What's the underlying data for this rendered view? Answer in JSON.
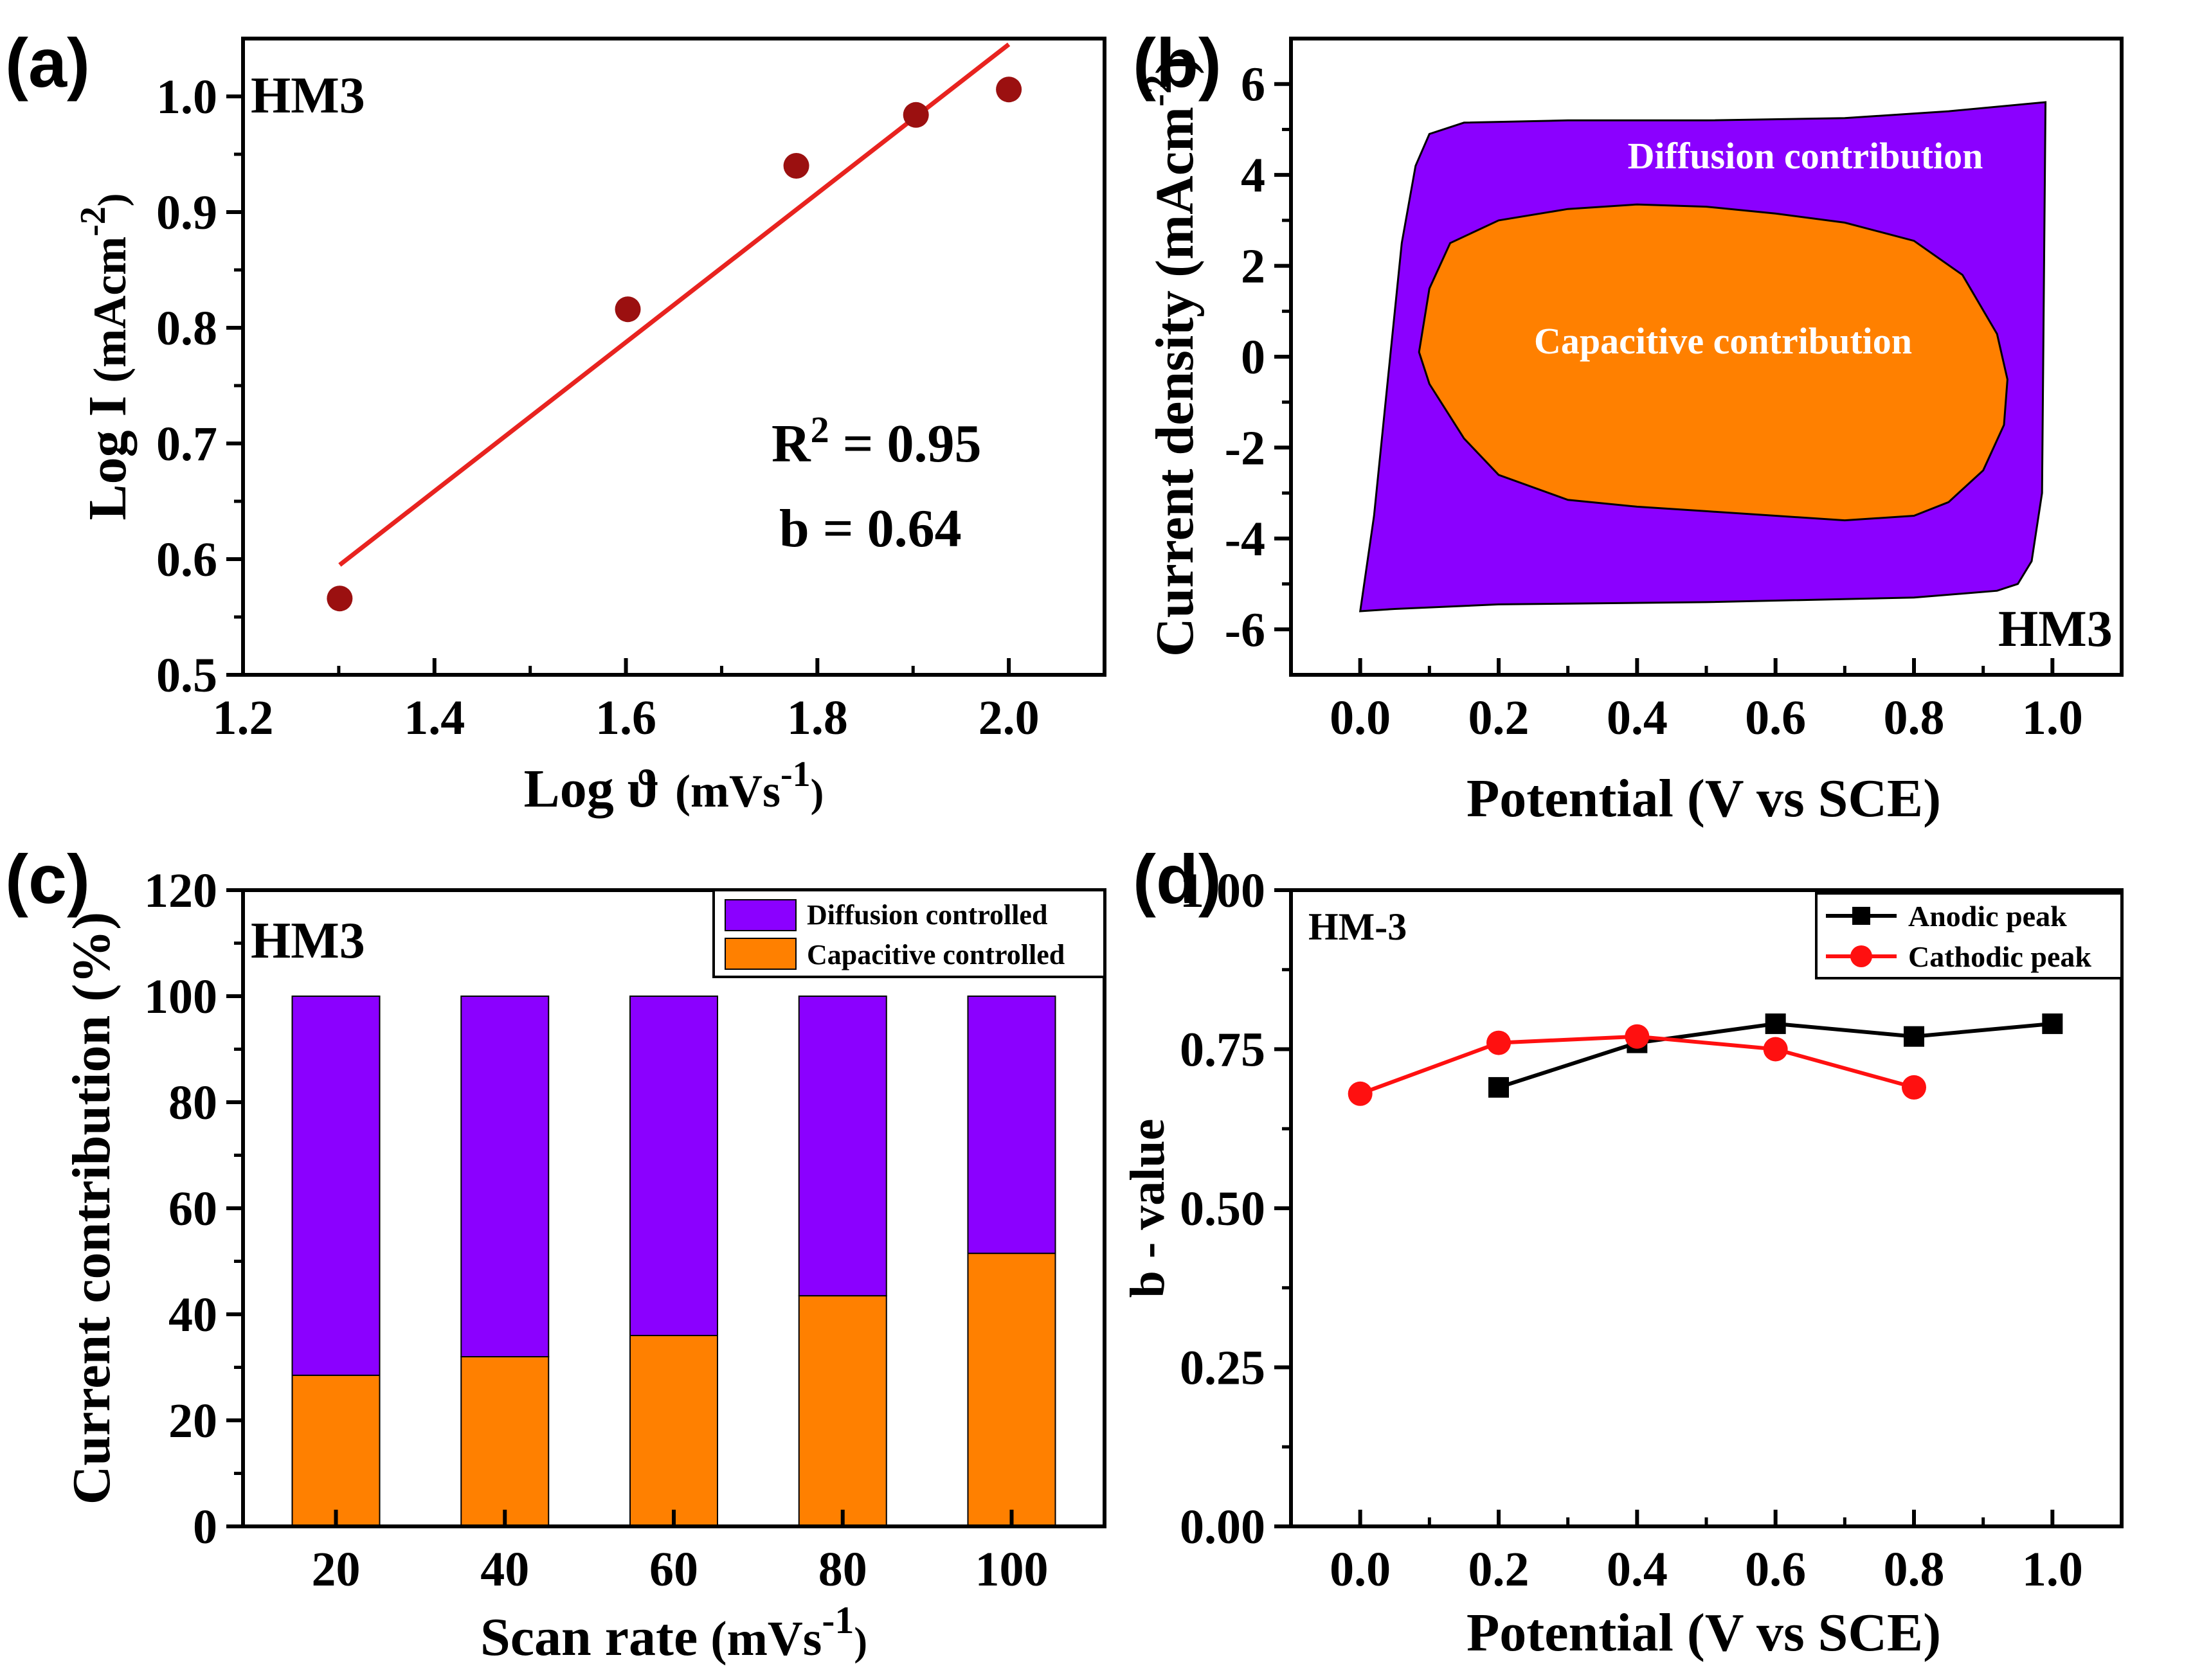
{
  "chart_data": [
    {
      "panel": "(a)",
      "type": "scatter",
      "label": "HM3",
      "xlabel": "Log ϑ",
      "xunit_prefix": "(mVs",
      "xunit_exp": "-1",
      "xunit_suffix": ")",
      "ylabel": "Log I",
      "yunit_prefix": "(mAcm",
      "yunit_exp": "-2",
      "yunit_suffix": ")",
      "xlim": [
        1.2,
        2.1
      ],
      "ylim": [
        0.5,
        1.05
      ],
      "xticks": [
        1.2,
        1.4,
        1.6,
        1.8,
        2.0
      ],
      "xtick_labels": [
        "1.2",
        "1.4",
        "1.6",
        "1.8",
        "2.0"
      ],
      "yticks": [
        0.5,
        0.6,
        0.7,
        0.8,
        0.9,
        1.0
      ],
      "ytick_labels": [
        "0.5",
        "0.6",
        "0.7",
        "0.8",
        "0.9",
        "1.0"
      ],
      "points": {
        "x": [
          1.301,
          1.602,
          1.778,
          1.903,
          2.0
        ],
        "y": [
          0.566,
          0.816,
          0.94,
          0.984,
          1.006
        ]
      },
      "point_color": "#9B1010",
      "fit": {
        "x": [
          1.301,
          2.0
        ],
        "y": [
          0.595,
          1.045
        ],
        "color": "#E8231F"
      },
      "annotations": {
        "r2_prefix": "R",
        "r2_exp": "2",
        "r2_value": " = 0.95",
        "b_text": "b = 0.64"
      }
    },
    {
      "panel": "(b)",
      "type": "area",
      "label": "HM3",
      "xlabel": "Potential (V vs SCE)",
      "ylabel": "Current density",
      "yunit_prefix": "(mAcm",
      "yunit_exp": "-2",
      "yunit_suffix": ")",
      "xlim": [
        -0.1,
        1.1
      ],
      "ylim": [
        -7,
        7
      ],
      "xticks": [
        0.0,
        0.2,
        0.4,
        0.6,
        0.8,
        1.0
      ],
      "xtick_labels": [
        "0.0",
        "0.2",
        "0.4",
        "0.6",
        "0.8",
        "1.0"
      ],
      "yticks": [
        -6,
        -4,
        -2,
        0,
        2,
        4,
        6
      ],
      "ytick_labels": [
        "-6",
        "-4",
        "-2",
        "0",
        "2",
        "4",
        "6"
      ],
      "series": [
        {
          "name": "Diffusion contribution",
          "color": "#8B00FF",
          "outline": [
            [
              0.0,
              -5.6
            ],
            [
              0.02,
              -3.5
            ],
            [
              0.04,
              -0.5
            ],
            [
              0.06,
              2.5
            ],
            [
              0.08,
              4.2
            ],
            [
              0.1,
              4.9
            ],
            [
              0.15,
              5.15
            ],
            [
              0.3,
              5.2
            ],
            [
              0.5,
              5.2
            ],
            [
              0.7,
              5.25
            ],
            [
              0.85,
              5.4
            ],
            [
              0.99,
              5.6
            ],
            [
              0.985,
              -3.0
            ],
            [
              0.97,
              -4.5
            ],
            [
              0.95,
              -5.0
            ],
            [
              0.92,
              -5.15
            ],
            [
              0.8,
              -5.3
            ],
            [
              0.5,
              -5.4
            ],
            [
              0.2,
              -5.45
            ],
            [
              0.05,
              -5.55
            ],
            [
              0.0,
              -5.6
            ]
          ]
        },
        {
          "name": "Capacitive contribution",
          "color": "#FF8000",
          "outline": [
            [
              0.085,
              0.1
            ],
            [
              0.1,
              1.5
            ],
            [
              0.13,
              2.5
            ],
            [
              0.2,
              3.0
            ],
            [
              0.3,
              3.25
            ],
            [
              0.4,
              3.35
            ],
            [
              0.5,
              3.3
            ],
            [
              0.6,
              3.15
            ],
            [
              0.7,
              2.95
            ],
            [
              0.8,
              2.55
            ],
            [
              0.87,
              1.8
            ],
            [
              0.92,
              0.5
            ],
            [
              0.935,
              -0.5
            ],
            [
              0.93,
              -1.5
            ],
            [
              0.9,
              -2.5
            ],
            [
              0.85,
              -3.2
            ],
            [
              0.8,
              -3.5
            ],
            [
              0.7,
              -3.6
            ],
            [
              0.6,
              -3.5
            ],
            [
              0.5,
              -3.4
            ],
            [
              0.4,
              -3.3
            ],
            [
              0.3,
              -3.15
            ],
            [
              0.2,
              -2.6
            ],
            [
              0.15,
              -1.8
            ],
            [
              0.1,
              -0.6
            ],
            [
              0.085,
              0.1
            ]
          ]
        }
      ]
    },
    {
      "panel": "(c)",
      "type": "bar",
      "label": "HM3",
      "stacked": true,
      "xlabel": "Scan rate",
      "xunit_prefix": "(mVs",
      "xunit_exp": "-1",
      "xunit_suffix": ")",
      "ylabel": "Current contribution (%)",
      "ylim": [
        0,
        120
      ],
      "yticks": [
        0,
        20,
        40,
        60,
        80,
        100,
        120
      ],
      "ytick_labels": [
        "0",
        "20",
        "40",
        "60",
        "80",
        "100",
        "120"
      ],
      "categories": [
        "20",
        "40",
        "60",
        "80",
        "100"
      ],
      "legend_position": "top-right",
      "series": [
        {
          "name": "Capacitive controlled",
          "color": "#FF8000",
          "values": [
            28.5,
            32,
            36,
            43.5,
            51.5
          ]
        },
        {
          "name": "Diffusion controlled",
          "color": "#8B00FF",
          "values": [
            71.5,
            68,
            64,
            56.5,
            48.5
          ]
        }
      ]
    },
    {
      "panel": "(d)",
      "type": "line",
      "label": "HM-3",
      "xlabel": "Potential (V vs SCE)",
      "ylabel": "b - value",
      "xlim": [
        -0.1,
        1.1
      ],
      "ylim": [
        0.0,
        1.0
      ],
      "xticks": [
        0.0,
        0.2,
        0.4,
        0.6,
        0.8,
        1.0
      ],
      "xtick_labels": [
        "0.0",
        "0.2",
        "0.4",
        "0.6",
        "0.8",
        "1.0"
      ],
      "yticks": [
        0.0,
        0.25,
        0.5,
        0.75,
        1.0
      ],
      "ytick_labels": [
        "0.00",
        "0.25",
        "0.50",
        "0.75",
        "1.00"
      ],
      "legend_position": "top-right",
      "series": [
        {
          "name": "Anodic peak",
          "color": "#000000",
          "marker": "square",
          "x": [
            0.2,
            0.4,
            0.6,
            0.8,
            1.0
          ],
          "y": [
            0.69,
            0.76,
            0.79,
            0.77,
            0.79
          ]
        },
        {
          "name": "Cathodic peak",
          "color": "#FF1010",
          "marker": "circle",
          "x": [
            0.0,
            0.2,
            0.4,
            0.6,
            0.8
          ],
          "y": [
            0.68,
            0.76,
            0.77,
            0.75,
            0.69
          ]
        }
      ]
    }
  ]
}
